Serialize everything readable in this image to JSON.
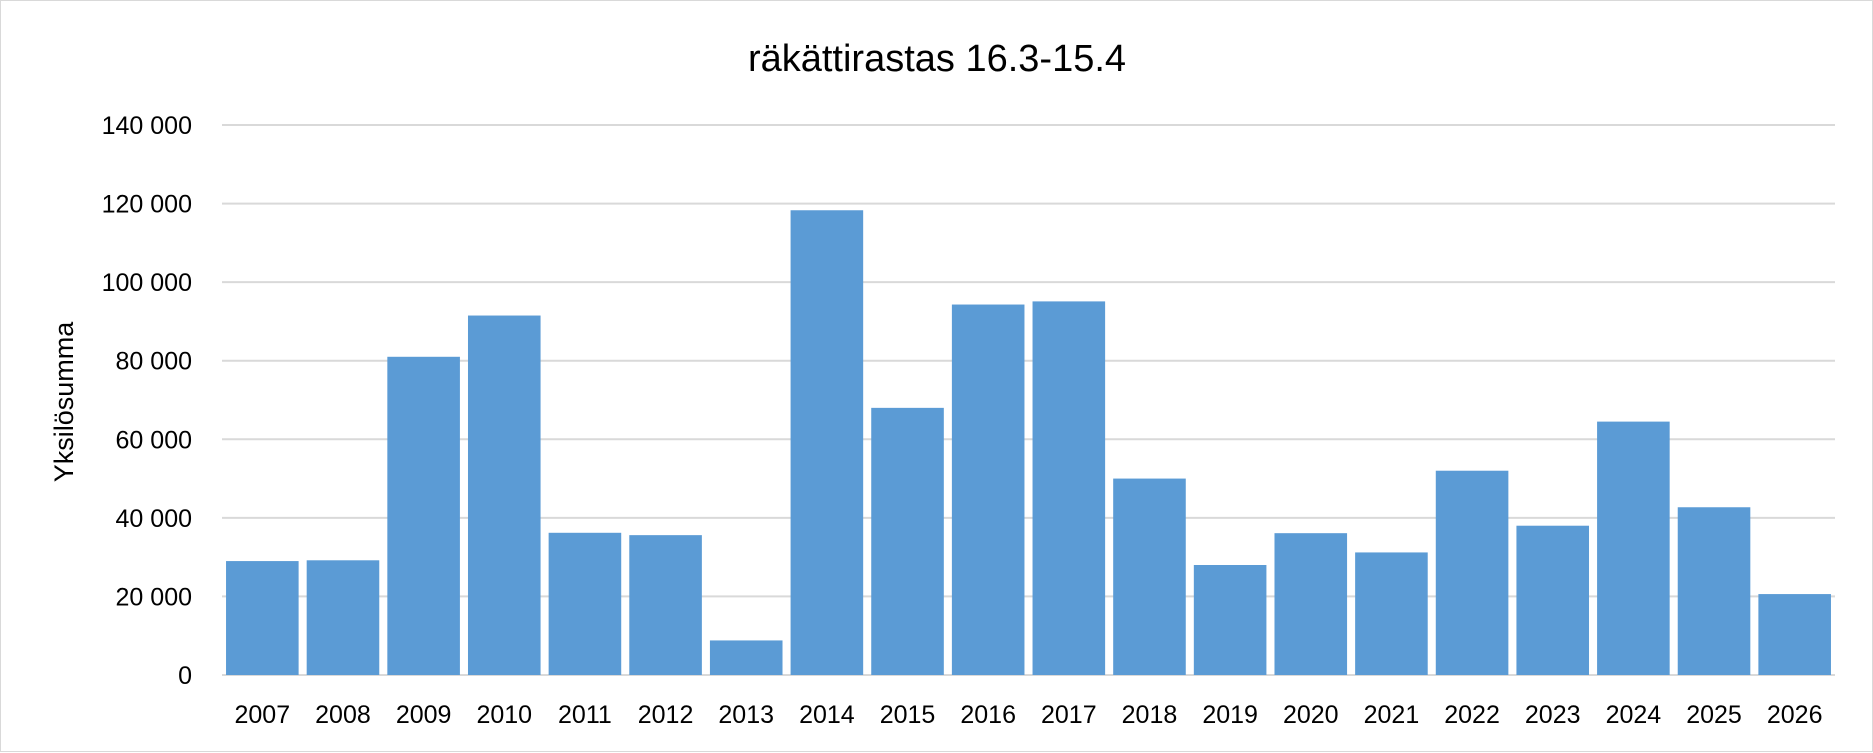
{
  "chart_data": {
    "type": "bar",
    "title": "räkättirastas 16.3-15.4",
    "xlabel": "",
    "ylabel": "Yksilösumma",
    "categories": [
      "2007",
      "2008",
      "2009",
      "2010",
      "2011",
      "2012",
      "2013",
      "2014",
      "2015",
      "2016",
      "2017",
      "2018",
      "2019",
      "2020",
      "2021",
      "2022",
      "2023",
      "2024",
      "2025",
      "2026"
    ],
    "values": [
      29000,
      29200,
      81000,
      91500,
      36200,
      35600,
      8800,
      118300,
      68000,
      94300,
      95100,
      50000,
      28000,
      36100,
      31200,
      52000,
      38000,
      64500,
      42700,
      20600
    ],
    "ylim": [
      0,
      140000
    ],
    "yticks": [
      0,
      20000,
      40000,
      60000,
      80000,
      100000,
      120000,
      140000
    ],
    "ytick_labels": [
      "0",
      "20 000",
      "40 000",
      "60 000",
      "80 000",
      "100 000",
      "120 000",
      "140 000"
    ],
    "bar_color": "#5b9bd5",
    "grid": true,
    "legend": "none"
  }
}
